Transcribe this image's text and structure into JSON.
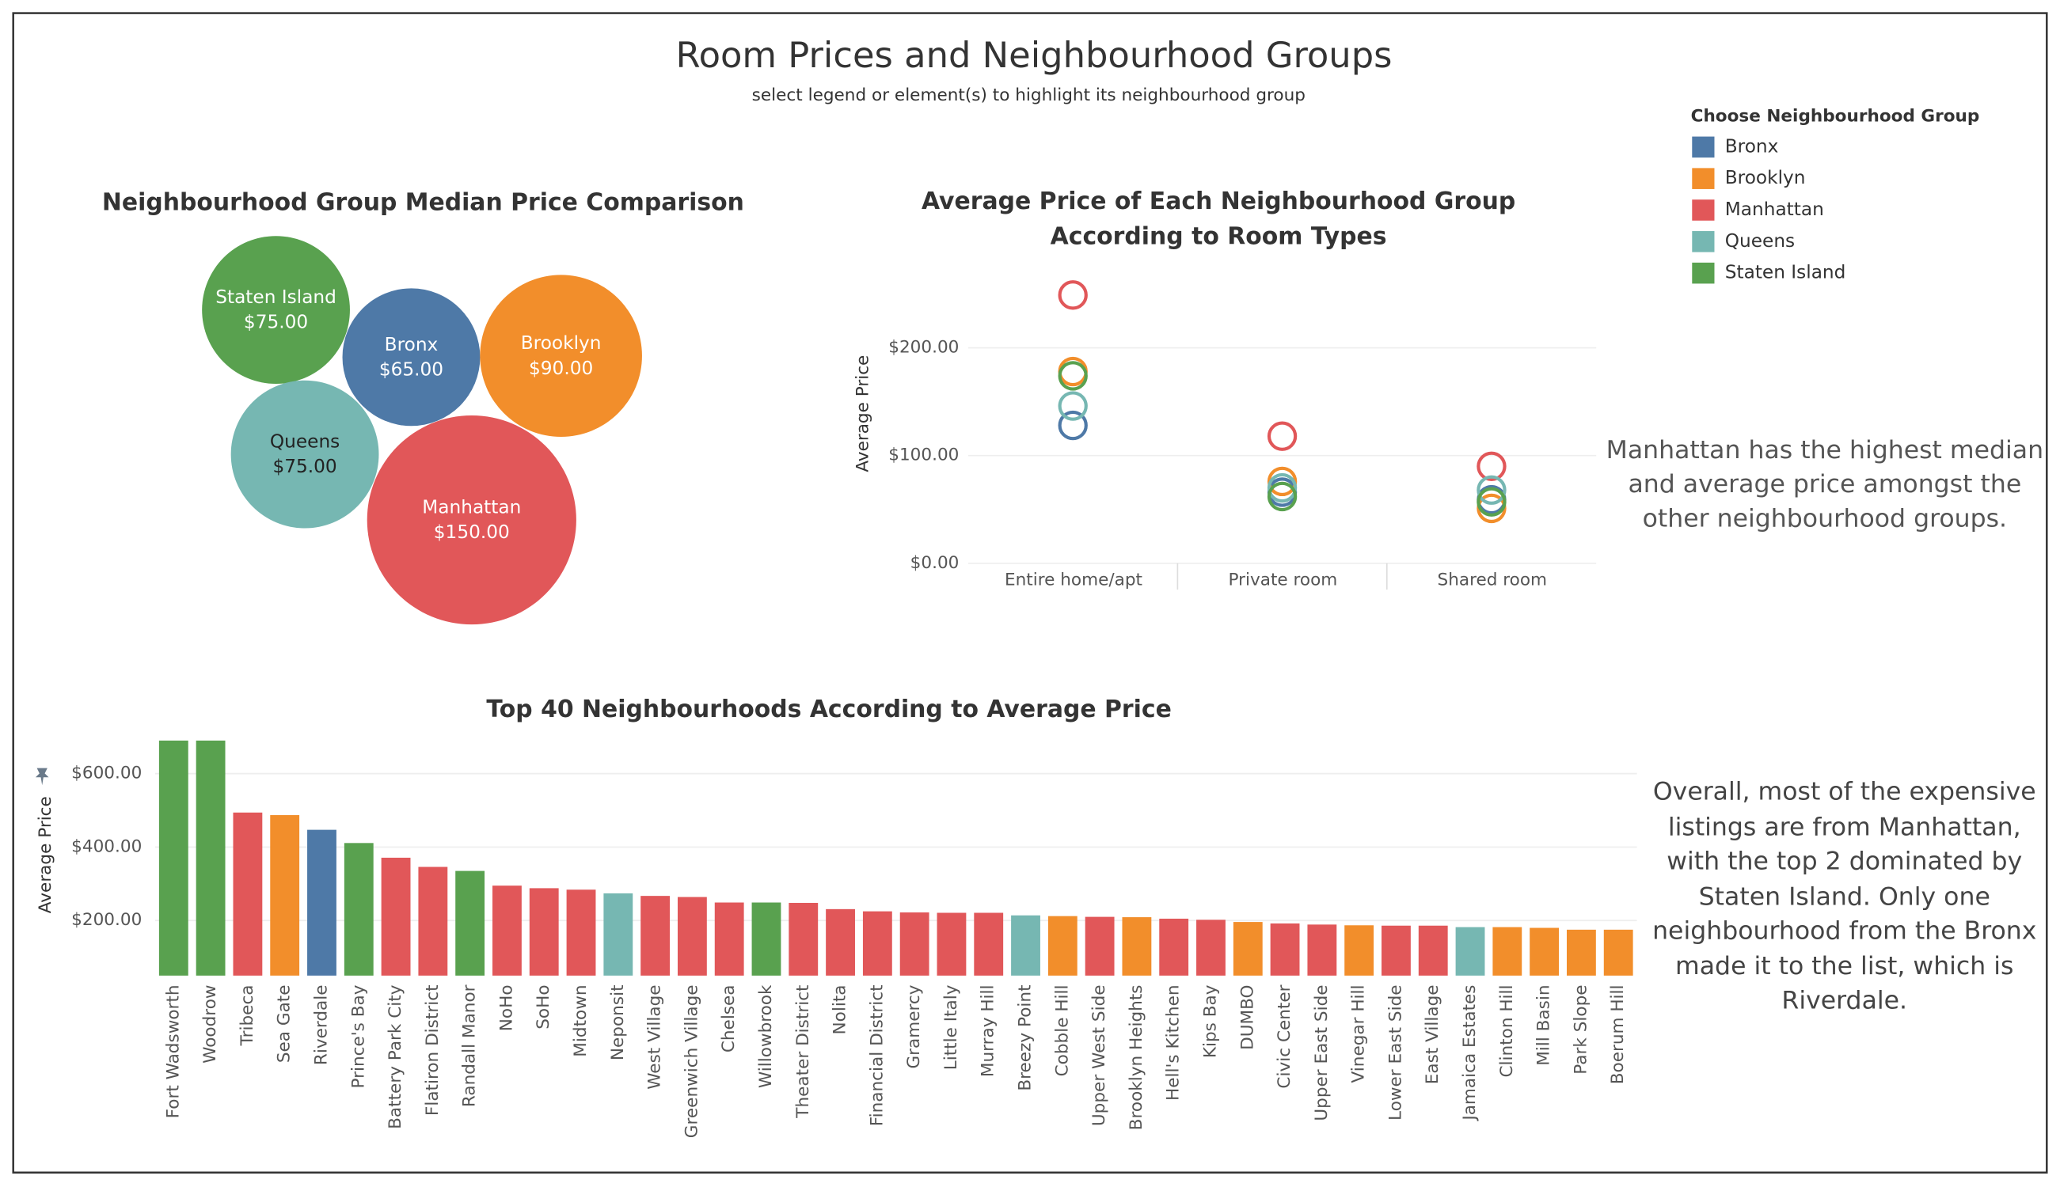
{
  "title": "Room Prices and Neighbourhood Groups",
  "subtitle": "select legend or element(s) to highlight its neighbourhood group",
  "legend": {
    "title": "Choose Neighbourhood Group",
    "items": [
      {
        "name": "Bronx",
        "color": "#4e79a7"
      },
      {
        "name": "Brooklyn",
        "color": "#f28e2b"
      },
      {
        "name": "Manhattan",
        "color": "#e15759"
      },
      {
        "name": "Queens",
        "color": "#76b7b2"
      },
      {
        "name": "Staten Island",
        "color": "#59a14f"
      }
    ]
  },
  "annotations": [
    "Manhattan has the highest median and average price amongst the other neighbourhood groups.",
    "Overall, most of the expensive listings are from Manhattan, with the top 2  dominated by Staten Island. Only one neighbourhood from the Bronx made it to the list, which is Riverdale."
  ],
  "chart_data": [
    {
      "type": "bubble",
      "title": "Neighbourhood Group Median Price Comparison",
      "categories": [
        "Staten Island",
        "Bronx",
        "Brooklyn",
        "Queens",
        "Manhattan"
      ],
      "values": [
        75,
        65,
        90,
        75,
        150
      ],
      "value_labels": [
        "$75.00",
        "$65.00",
        "$90.00",
        "$75.00",
        "$150.00"
      ],
      "colors": [
        "#59a14f",
        "#4e79a7",
        "#f28e2b",
        "#76b7b2",
        "#e15759"
      ]
    },
    {
      "type": "scatter",
      "title": "Average Price of Each Neighbourhood Group According to Room Types",
      "y_label": "Average Price",
      "categories": [
        "Entire home/apt",
        "Private room",
        "Shared room"
      ],
      "series": [
        {
          "name": "Bronx",
          "color": "#4e79a7",
          "values": [
            128,
            66,
            59
          ]
        },
        {
          "name": "Brooklyn",
          "color": "#f28e2b",
          "values": [
            178,
            76,
            51
          ]
        },
        {
          "name": "Manhattan",
          "color": "#e15759",
          "values": [
            249,
            118,
            90
          ]
        },
        {
          "name": "Queens",
          "color": "#76b7b2",
          "values": [
            146,
            70,
            68
          ]
        },
        {
          "name": "Staten Island",
          "color": "#59a14f",
          "values": [
            174,
            62,
            57
          ]
        }
      ],
      "ylim": [
        0,
        273
      ],
      "yticks": [
        {
          "value": 0,
          "label": "$0.00"
        },
        {
          "value": 100,
          "label": "$100.00"
        },
        {
          "value": 200,
          "label": "$200.00"
        }
      ],
      "grid": true
    },
    {
      "type": "bar",
      "title": "Top 40 Neighbourhoods According to Average Price",
      "y_label": "Average Price",
      "categories": [
        "Fort Wadsworth",
        "Woodrow",
        "Tribeca",
        "Sea Gate",
        "Riverdale",
        "Prince's Bay",
        "Battery Park City",
        "Flatiron District",
        "Randall Manor",
        "NoHo",
        "SoHo",
        "Midtown",
        "Neponsit",
        "West Village",
        "Greenwich Village",
        "Chelsea",
        "Willowbrook",
        "Theater District",
        "Nolita",
        "Financial District",
        "Gramercy",
        "Little Italy",
        "Murray Hill",
        "Breezy Point",
        "Cobble Hill",
        "Upper West Side",
        "Brooklyn Heights",
        "Hell's Kitchen",
        "Kips Bay",
        "DUMBO",
        "Civic Center",
        "Upper East Side",
        "Vinegar Hill",
        "Lower East Side",
        "East Village",
        "Jamaica Estates",
        "Clinton Hill",
        "Mill Basin",
        "Park Slope",
        "Boerum Hill"
      ],
      "values": [
        690,
        690,
        494,
        487,
        447,
        411,
        371,
        346,
        335,
        295,
        288,
        284,
        274,
        267,
        264,
        249,
        249,
        248,
        231,
        225,
        222,
        221,
        221,
        214,
        212,
        210,
        209,
        205,
        202,
        196,
        192,
        189,
        187,
        186,
        186,
        182,
        182,
        180,
        175,
        175
      ],
      "colors": [
        "#59a14f",
        "#59a14f",
        "#e15759",
        "#f28e2b",
        "#4e79a7",
        "#59a14f",
        "#e15759",
        "#e15759",
        "#59a14f",
        "#e15759",
        "#e15759",
        "#e15759",
        "#76b7b2",
        "#e15759",
        "#e15759",
        "#e15759",
        "#59a14f",
        "#e15759",
        "#e15759",
        "#e15759",
        "#e15759",
        "#e15759",
        "#e15759",
        "#76b7b2",
        "#f28e2b",
        "#e15759",
        "#f28e2b",
        "#e15759",
        "#e15759",
        "#f28e2b",
        "#e15759",
        "#e15759",
        "#f28e2b",
        "#e15759",
        "#e15759",
        "#76b7b2",
        "#f28e2b",
        "#f28e2b",
        "#f28e2b",
        "#f28e2b"
      ],
      "ylim": [
        50,
        690
      ],
      "yticks": [
        {
          "value": 200,
          "label": "$200.00"
        },
        {
          "value": 400,
          "label": "$400.00"
        },
        {
          "value": 600,
          "label": "$600.00"
        }
      ],
      "grid": true
    }
  ]
}
